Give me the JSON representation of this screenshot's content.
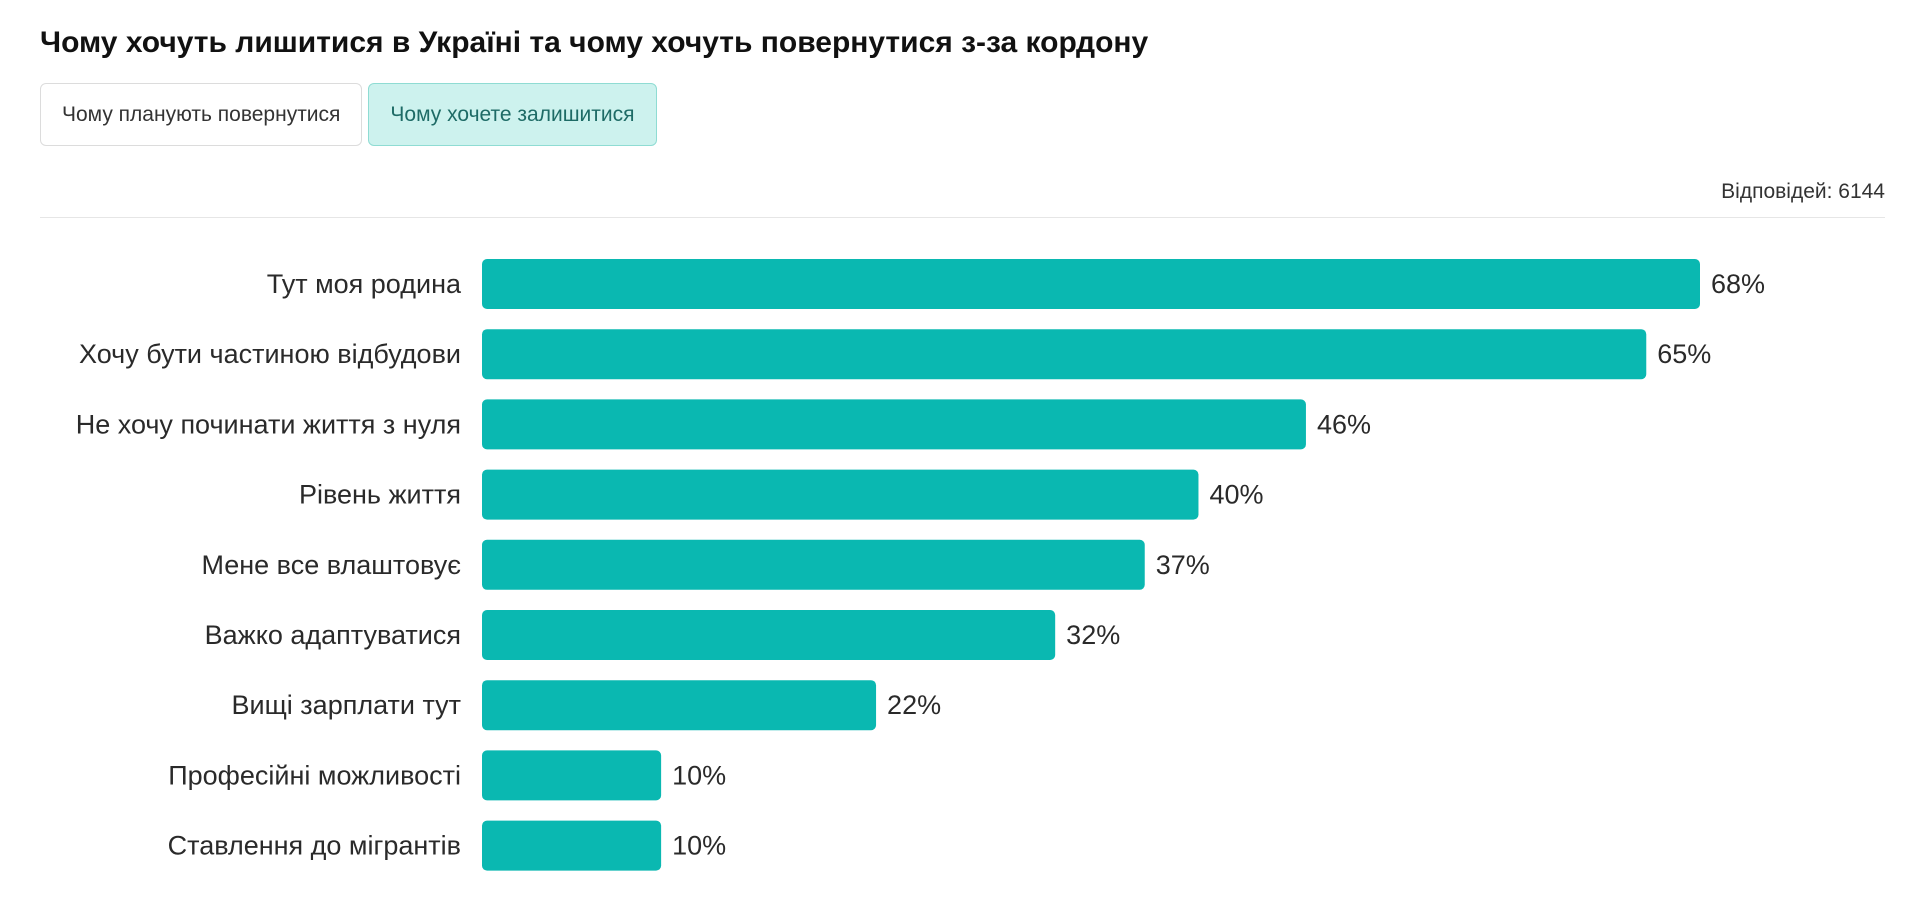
{
  "title": "Чому хочуть лишитися в Україні та чому хочуть повернутися з-за кордону",
  "tabs": [
    {
      "label": "Чому планують повернутися",
      "active": false
    },
    {
      "label": "Чому хочете залишитися",
      "active": true
    }
  ],
  "responses_label": "Відповідей: 6144",
  "colors": {
    "bar": "#0ab8b1",
    "active_tab_bg": "#cdf2ee",
    "active_tab_border": "#8fdcd3"
  },
  "chart_data": {
    "type": "bar",
    "orientation": "horizontal",
    "categories": [
      "Тут моя родина",
      "Хочу бути частиною відбудови",
      "Не хочу починати життя з нуля",
      "Рівень життя",
      "Мене все влаштовує",
      "Важко адаптуватися",
      "Вищі зарплати тут",
      "Професійні можливості",
      "Ставлення до мігрантів"
    ],
    "values": [
      68,
      65,
      46,
      40,
      37,
      32,
      22,
      10,
      10
    ],
    "value_labels": [
      "68%",
      "65%",
      "46%",
      "40%",
      "37%",
      "32%",
      "22%",
      "10%",
      "10%"
    ],
    "unit": "%",
    "xlim": [
      0,
      68
    ],
    "grid": false,
    "legend": "none"
  }
}
